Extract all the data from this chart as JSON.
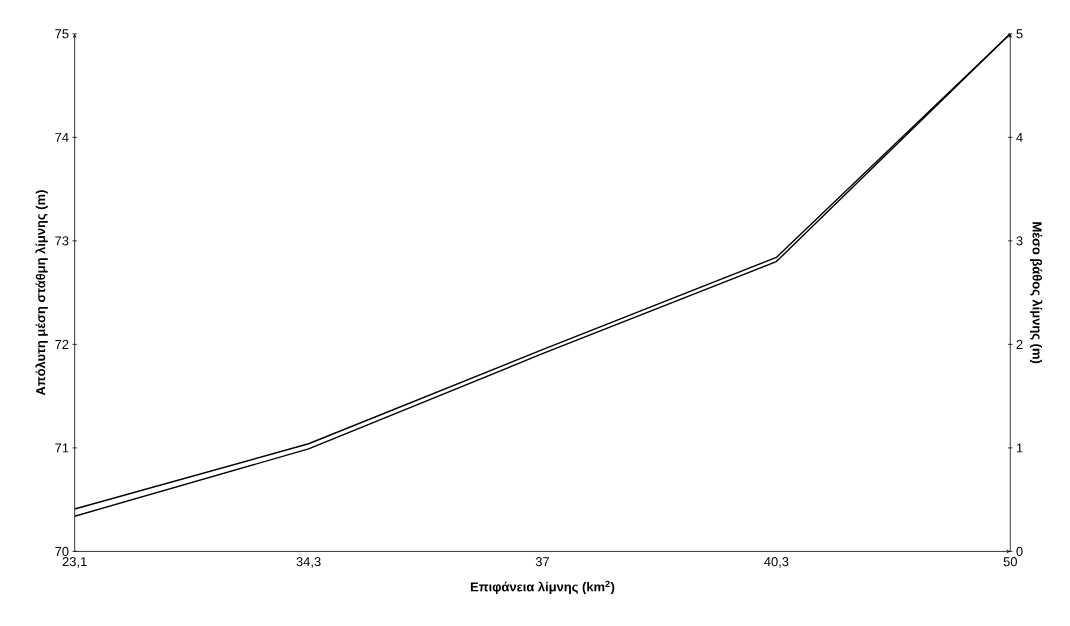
{
  "chart_data": {
    "type": "line",
    "xlabel": "Επιφάνεια λίμνης (km$^{2}$)",
    "ylabel": "Απόλυτη μέση στάθμη λίμνης (m)",
    "y2label": "Μέσο βάθος λίμνης (m)",
    "categories": [
      "23,1",
      "34,3",
      "37",
      "40,3",
      "50"
    ],
    "series": [
      {
        "color": "#000000",
        "values": [
          70.41,
          71.04,
          71.95,
          72.84,
          75
        ]
      },
      {
        "color": "#000000",
        "axis": "y2",
        "values": [
          0.34,
          0.99,
          1.91,
          2.8,
          5
        ]
      }
    ],
    "ylim": [
      70,
      75
    ],
    "yticks": [
      70,
      71,
      72,
      73,
      74,
      75
    ],
    "y2lim": [
      0,
      5
    ],
    "y2ticks": [
      0,
      1,
      2,
      3,
      4,
      5
    ],
    "grid": false,
    "marker": "none",
    "line_style": "solid"
  }
}
